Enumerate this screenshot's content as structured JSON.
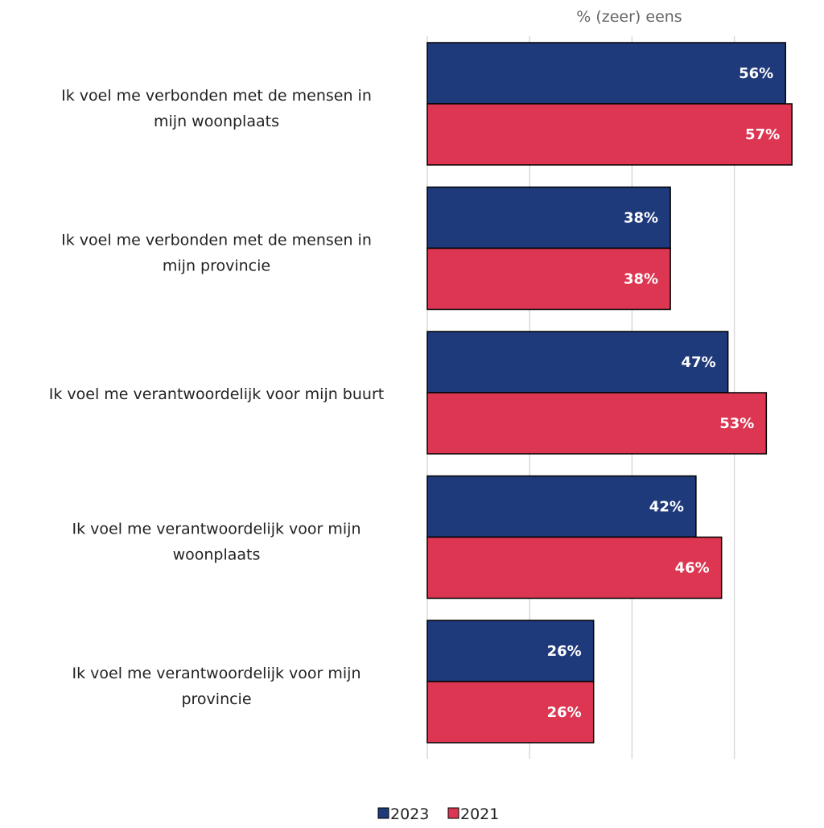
{
  "chart_data": {
    "type": "bar",
    "orientation": "horizontal",
    "axis_title": "% (zeer) eens",
    "categories": [
      [
        "Ik voel me verbonden met de mensen in",
        "mijn woonplaats"
      ],
      [
        "Ik voel me verbonden met de mensen in",
        "mijn provincie"
      ],
      [
        "Ik voel me verantwoordelijk voor mijn buurt"
      ],
      [
        "Ik voel me verantwoordelijk voor mijn",
        "woonplaats"
      ],
      [
        "Ik voel me verantwoordelijk voor mijn",
        "provincie"
      ]
    ],
    "series": [
      {
        "name": "2023",
        "color": "#1f3a7a",
        "values": [
          56,
          38,
          47,
          42,
          26
        ],
        "labels": [
          "56%",
          "38%",
          "47%",
          "42%",
          "26%"
        ]
      },
      {
        "name": "2021",
        "color": "#dc3652",
        "values": [
          57,
          38,
          53,
          46,
          26
        ],
        "labels": [
          "57%",
          "38%",
          "53%",
          "46%",
          "26%"
        ]
      }
    ],
    "xlim": [
      0,
      60
    ],
    "grid": true,
    "legend_position": "bottom"
  }
}
